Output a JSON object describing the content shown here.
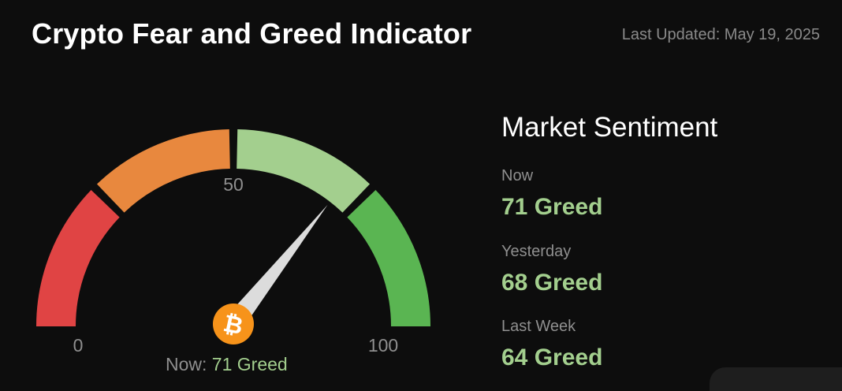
{
  "header": {
    "title": "Crypto Fear and Greed Indicator",
    "last_updated": "Last Updated: May 19, 2025"
  },
  "gauge": {
    "value": 71,
    "min_label": "0",
    "mid_label": "50",
    "max_label": "100",
    "segment_colors": [
      "#e04444",
      "#e8883e",
      "#a3cf8e",
      "#5ab552"
    ],
    "needle_color": "#dcdcdc",
    "icon": "bitcoin-icon",
    "icon_color": "#f7931a",
    "now_prefix": "Now: ",
    "now_value": "71 Greed"
  },
  "sentiment": {
    "heading": "Market Sentiment",
    "rows": [
      {
        "label": "Now",
        "value": "71 Greed"
      },
      {
        "label": "Yesterday",
        "value": "68 Greed"
      },
      {
        "label": "Last Week",
        "value": "64 Greed"
      }
    ]
  }
}
